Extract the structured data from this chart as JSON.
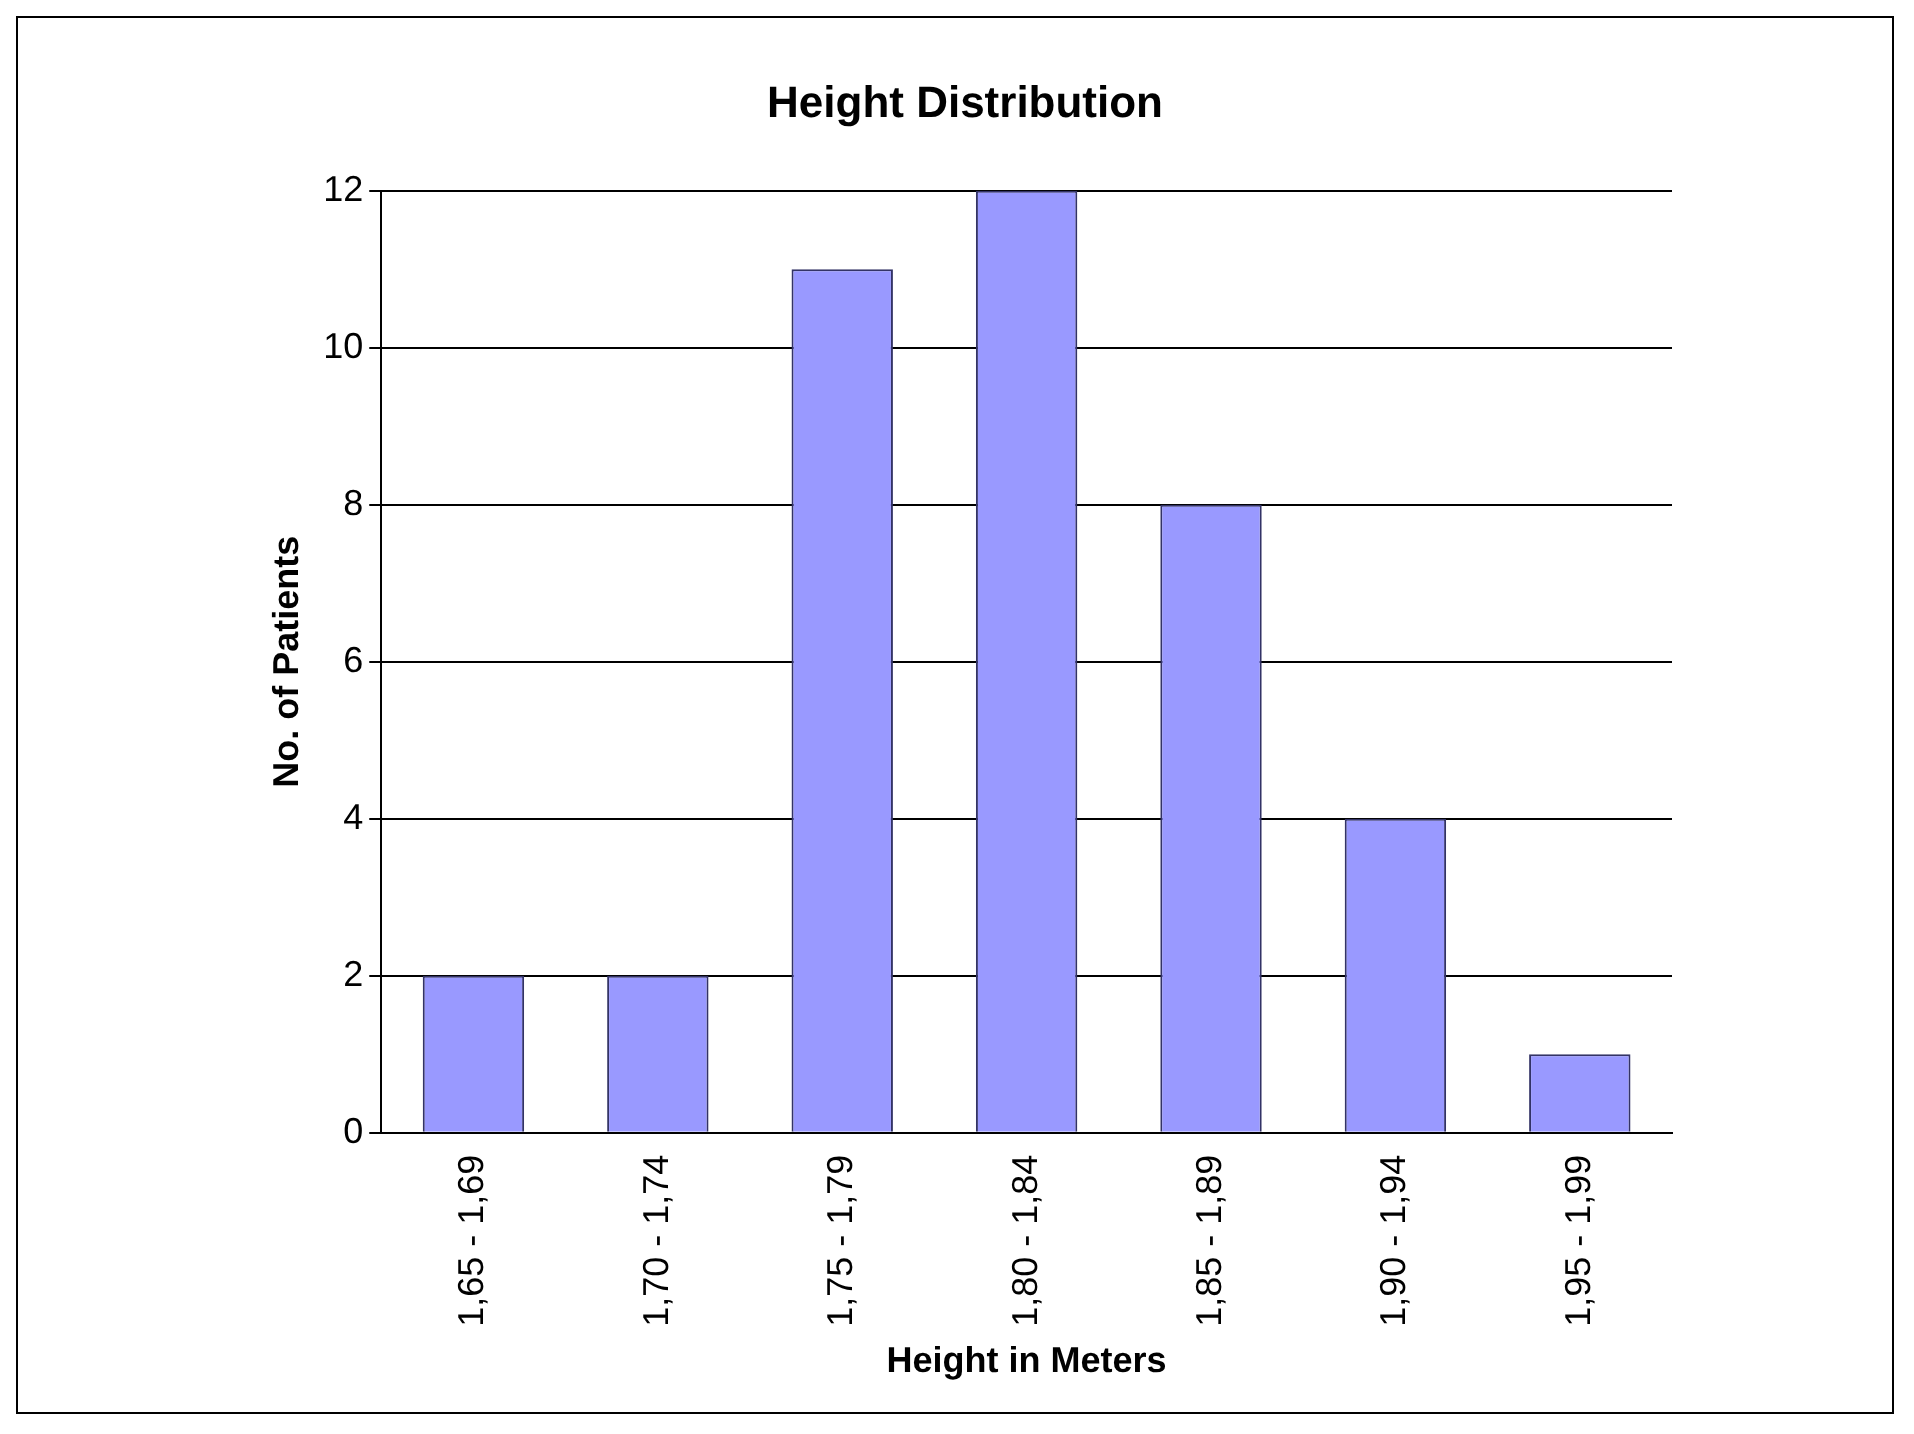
{
  "chart_data": {
    "type": "bar",
    "title": "Height Distribution",
    "xlabel": "Height in Meters",
    "ylabel": "No. of Patients",
    "categories": [
      "1,65 - 1,69",
      "1,70 - 1,74",
      "1,75 - 1,79",
      "1,80 - 1,84",
      "1,85 - 1,89",
      "1,90 - 1,94",
      "1,95 - 1,99"
    ],
    "values": [
      2,
      2,
      11,
      12,
      8,
      4,
      1
    ],
    "color": "#9999ff",
    "ylim": [
      0,
      12
    ],
    "yticks": [
      0,
      2,
      4,
      6,
      8,
      10,
      12
    ],
    "grid": "y",
    "legend": false
  }
}
